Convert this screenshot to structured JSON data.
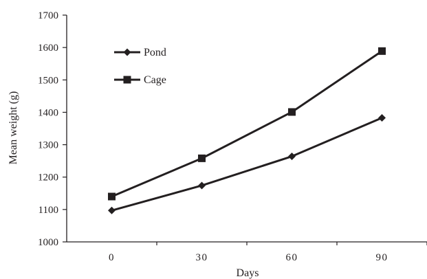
{
  "chart_data": {
    "type": "line",
    "title": "",
    "xlabel": "Days",
    "ylabel": "Mean weight (g)",
    "categories": [
      "0",
      "30",
      "60",
      "90"
    ],
    "x": [
      0,
      30,
      60,
      90
    ],
    "ylim": [
      1000,
      1700
    ],
    "yticks": [
      "1000",
      "1100",
      "1200",
      "1300",
      "1400",
      "1500",
      "1600",
      "1700"
    ],
    "grid": false,
    "legend_position": "top-left",
    "series": [
      {
        "name": "Pond",
        "marker": "diamond",
        "color": "#231f20",
        "values": [
          1097,
          1174,
          1264,
          1383
        ]
      },
      {
        "name": "Cage",
        "marker": "square",
        "color": "#231f20",
        "values": [
          1140,
          1258,
          1401,
          1589
        ]
      }
    ]
  }
}
